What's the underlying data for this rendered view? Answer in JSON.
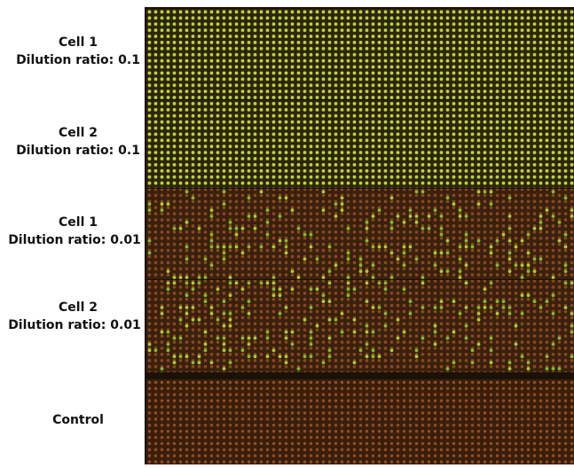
{
  "panels": [
    {
      "lines": [
        "Cell 1",
        "Dilution ratio: 0.1"
      ]
    },
    {
      "lines": [
        "Cell 2",
        "Dilution ratio: 0.1"
      ]
    },
    {
      "lines": [
        "Cell 1",
        "Dilution ratio: 0.01"
      ]
    },
    {
      "lines": [
        "Cell 2",
        "Dilution ratio: 0.01"
      ]
    },
    {
      "lines": [
        "Control"
      ]
    }
  ]
}
